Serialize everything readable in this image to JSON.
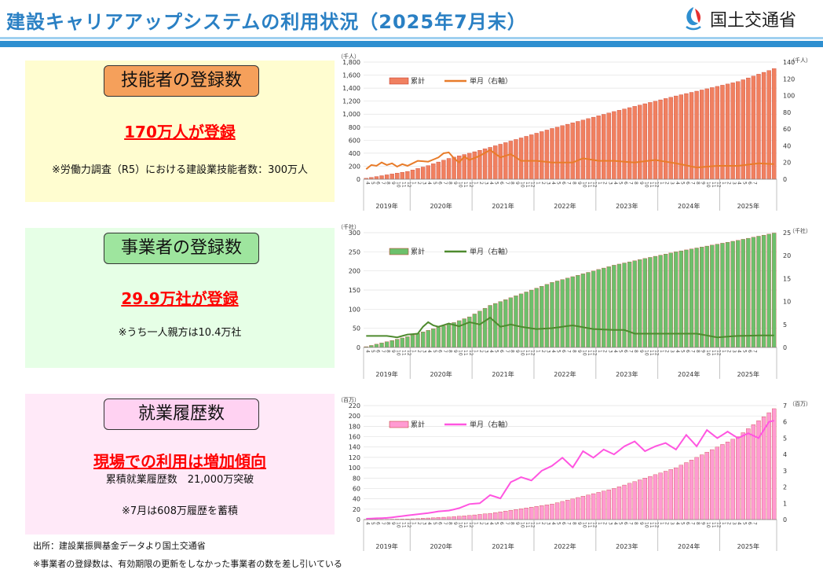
{
  "header": {
    "title": "建設キャリアアップシステムの利用状況（2025年7月末）",
    "ministry": "国土交通省"
  },
  "panels": [
    {
      "heading": "技能者の登録数",
      "headline": "170万人が登録",
      "note": "※労働力調査（R5）における建設業技能者数：300万人"
    },
    {
      "heading": "事業者の登録数",
      "headline": "29.9万社が登録",
      "note": "※うち一人親方は10.4万社"
    },
    {
      "heading": "就業履歴数",
      "headline": "現場での利用は増加傾向",
      "subline": "累積就業履歴数　21,000万突破",
      "note": "※7月は608万履歴を蓄積"
    }
  ],
  "footer": {
    "source": "出所：建設業振興基金データより国土交通省",
    "note": "※事業者の登録数は、有効期限の更新をしなかった事業者の数を差し引いている"
  },
  "chart_data": [
    {
      "type": "bar",
      "bar_color": "#f08060",
      "line_color": "#e87c2a",
      "left_unit": "（千人）",
      "right_unit": "（千人）",
      "ylim": [
        0,
        1800
      ],
      "y_ticks": [
        "0",
        "200",
        "400",
        "600",
        "800",
        "1,000",
        "1,200",
        "1,400",
        "1,600",
        "1,800"
      ],
      "y2lim": [
        0,
        140
      ],
      "y2_ticks": [
        "0",
        "20",
        "40",
        "60",
        "80",
        "100",
        "120",
        "140"
      ],
      "series_labels": [
        "累計",
        "単月（右軸）"
      ],
      "year_labels": [
        "2019年",
        "2020年",
        "2021年",
        "2022年",
        "2023年",
        "2024年",
        "2025年"
      ],
      "cumulative_anchors": [
        [
          0,
          15
        ],
        [
          8,
          120
        ],
        [
          12,
          210
        ],
        [
          16,
          320
        ],
        [
          20,
          400
        ],
        [
          24,
          490
        ],
        [
          36,
          780
        ],
        [
          48,
          1040
        ],
        [
          60,
          1280
        ],
        [
          72,
          1500
        ],
        [
          79,
          1700
        ]
      ],
      "monthly_anchors": [
        [
          0,
          12
        ],
        [
          1,
          17
        ],
        [
          2,
          16
        ],
        [
          3,
          20
        ],
        [
          4,
          17
        ],
        [
          5,
          19
        ],
        [
          6,
          15
        ],
        [
          7,
          18
        ],
        [
          8,
          16
        ],
        [
          10,
          22
        ],
        [
          12,
          21
        ],
        [
          14,
          26
        ],
        [
          15,
          31
        ],
        [
          16,
          32
        ],
        [
          17,
          25
        ],
        [
          18,
          20
        ],
        [
          19,
          27
        ],
        [
          20,
          23
        ],
        [
          22,
          28
        ],
        [
          24,
          35
        ],
        [
          26,
          26
        ],
        [
          28,
          30
        ],
        [
          30,
          22
        ],
        [
          33,
          22
        ],
        [
          36,
          20
        ],
        [
          40,
          20
        ],
        [
          42,
          25
        ],
        [
          45,
          22
        ],
        [
          48,
          22
        ],
        [
          52,
          20
        ],
        [
          56,
          23
        ],
        [
          60,
          19
        ],
        [
          64,
          14
        ],
        [
          68,
          16
        ],
        [
          72,
          16
        ],
        [
          76,
          19
        ],
        [
          79,
          18
        ]
      ]
    },
    {
      "type": "bar",
      "bar_color": "#6cc06c",
      "line_color": "#4e8a2e",
      "left_unit": "（千社）",
      "right_unit": "（千社）",
      "ylim": [
        0,
        300
      ],
      "y_ticks": [
        "0",
        "50",
        "100",
        "150",
        "200",
        "250",
        "300"
      ],
      "y2lim": [
        0,
        25
      ],
      "y2_ticks": [
        "0",
        "5",
        "10",
        "15",
        "20",
        "25"
      ],
      "series_labels": [
        "累計",
        "単月（右軸）"
      ],
      "year_labels": [
        "2019年",
        "2020年",
        "2021年",
        "2022年",
        "2023年",
        "2024年",
        "2025年"
      ],
      "cumulative_anchors": [
        [
          0,
          2
        ],
        [
          8,
          28
        ],
        [
          12,
          45
        ],
        [
          16,
          60
        ],
        [
          20,
          80
        ],
        [
          24,
          110
        ],
        [
          36,
          170
        ],
        [
          48,
          215
        ],
        [
          60,
          250
        ],
        [
          72,
          280
        ],
        [
          79,
          299
        ]
      ],
      "monthly_anchors": [
        [
          0,
          2.5
        ],
        [
          2,
          2.5
        ],
        [
          4,
          2.5
        ],
        [
          6,
          2.2
        ],
        [
          8,
          2.8
        ],
        [
          10,
          3.0
        ],
        [
          11,
          4.5
        ],
        [
          12,
          5.5
        ],
        [
          13,
          4.8
        ],
        [
          14,
          4.5
        ],
        [
          16,
          5.2
        ],
        [
          18,
          4.6
        ],
        [
          20,
          5.5
        ],
        [
          22,
          5.0
        ],
        [
          24,
          6.5
        ],
        [
          25,
          5.5
        ],
        [
          26,
          4.5
        ],
        [
          28,
          5.0
        ],
        [
          30,
          4.5
        ],
        [
          33,
          4.0
        ],
        [
          36,
          4.2
        ],
        [
          40,
          4.8
        ],
        [
          44,
          4.0
        ],
        [
          48,
          3.8
        ],
        [
          50,
          3.8
        ],
        [
          52,
          3.0
        ],
        [
          56,
          3.0
        ],
        [
          60,
          3.0
        ],
        [
          64,
          3.0
        ],
        [
          68,
          2.2
        ],
        [
          72,
          2.5
        ],
        [
          76,
          2.6
        ],
        [
          79,
          2.6
        ]
      ]
    },
    {
      "type": "bar",
      "bar_color": "#ff9bd2",
      "line_color": "#ff55e0",
      "left_unit": "（百万）",
      "right_unit": "（百万）",
      "ylim": [
        0,
        220
      ],
      "y_ticks": [
        "0",
        "20",
        "40",
        "60",
        "80",
        "100",
        "120",
        "140",
        "160",
        "180",
        "200",
        "220"
      ],
      "y2lim": [
        0,
        7
      ],
      "y2_ticks": [
        "0",
        "1",
        "2",
        "3",
        "4",
        "5",
        "6",
        "7"
      ],
      "series_labels": [
        "累計",
        "単月（右軸）"
      ],
      "year_labels": [
        "2019年",
        "2020年",
        "2021年",
        "2022年",
        "2023年",
        "2024年",
        "2025年"
      ],
      "cumulative_anchors": [
        [
          0,
          0.2
        ],
        [
          8,
          1
        ],
        [
          12,
          3
        ],
        [
          16,
          5
        ],
        [
          20,
          8
        ],
        [
          24,
          12
        ],
        [
          36,
          30
        ],
        [
          48,
          60
        ],
        [
          60,
          100
        ],
        [
          72,
          160
        ],
        [
          79,
          214
        ]
      ],
      "monthly_anchors": [
        [
          0,
          0.05
        ],
        [
          4,
          0.1
        ],
        [
          8,
          0.25
        ],
        [
          12,
          0.4
        ],
        [
          14,
          0.5
        ],
        [
          16,
          0.55
        ],
        [
          18,
          0.7
        ],
        [
          20,
          0.95
        ],
        [
          22,
          1.0
        ],
        [
          24,
          1.5
        ],
        [
          26,
          1.3
        ],
        [
          28,
          2.3
        ],
        [
          30,
          2.6
        ],
        [
          32,
          2.4
        ],
        [
          34,
          3.0
        ],
        [
          36,
          3.3
        ],
        [
          38,
          3.8
        ],
        [
          40,
          3.2
        ],
        [
          42,
          4.2
        ],
        [
          44,
          3.8
        ],
        [
          46,
          4.3
        ],
        [
          48,
          4.0
        ],
        [
          50,
          4.5
        ],
        [
          52,
          4.8
        ],
        [
          54,
          4.2
        ],
        [
          56,
          4.5
        ],
        [
          58,
          4.7
        ],
        [
          60,
          4.3
        ],
        [
          62,
          5.2
        ],
        [
          64,
          4.5
        ],
        [
          66,
          5.5
        ],
        [
          68,
          5.0
        ],
        [
          70,
          5.4
        ],
        [
          72,
          5.0
        ],
        [
          74,
          5.3
        ],
        [
          76,
          5.0
        ],
        [
          78,
          6.0
        ],
        [
          79,
          6.08
        ]
      ]
    }
  ]
}
